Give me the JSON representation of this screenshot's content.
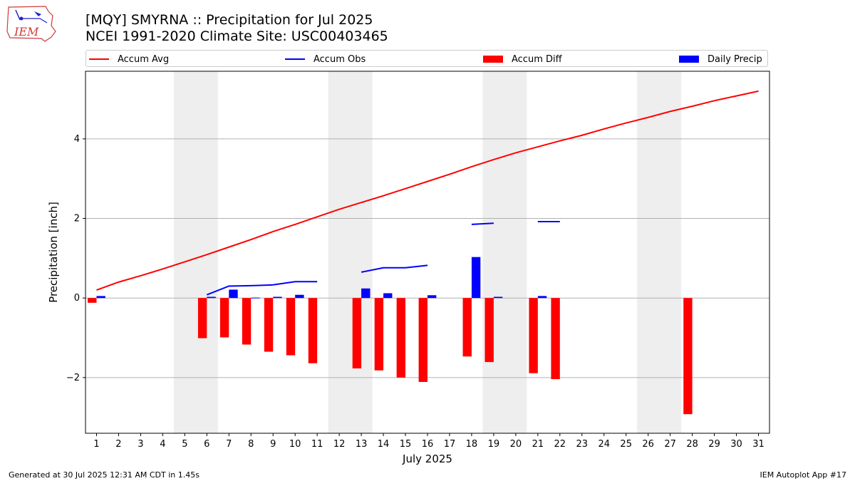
{
  "header": {
    "title_line1": "[MQY] SMYRNA :: Precipitation for Jul 2025",
    "title_line2": "NCEI 1991-2020 Climate Site: USC00403465",
    "logo_text": "IEM"
  },
  "footer": {
    "left": "Generated at 30 Jul 2025 12:31 AM CDT in 1.45s",
    "right": "IEM Autoplot App #17"
  },
  "legend": [
    {
      "label": "Accum Avg",
      "kind": "line",
      "color": "#ff0000"
    },
    {
      "label": "Accum Obs",
      "kind": "line",
      "color": "#0000ff"
    },
    {
      "label": "Accum Diff",
      "kind": "bar",
      "color": "#ff0000"
    },
    {
      "label": "Daily Precip",
      "kind": "bar",
      "color": "#0000ff"
    }
  ],
  "chart_data": {
    "type": "bar",
    "xlabel": "July 2025",
    "ylabel": "Precipitation [inch]",
    "xlim": [
      0.5,
      31.5
    ],
    "ylim": [
      -3.4,
      5.7
    ],
    "yticks": [
      -2,
      0,
      2,
      4
    ],
    "ytick_labels": [
      "−2",
      "0",
      "2",
      "4"
    ],
    "grid": "horizontal",
    "legend_position": "top",
    "days": [
      1,
      2,
      3,
      4,
      5,
      6,
      7,
      8,
      9,
      10,
      11,
      12,
      13,
      14,
      15,
      16,
      17,
      18,
      19,
      20,
      21,
      22,
      23,
      24,
      25,
      26,
      27,
      28,
      29,
      30,
      31
    ],
    "weekend_shading": [
      [
        4.5,
        6.5
      ],
      [
        11.5,
        13.5
      ],
      [
        18.5,
        20.5
      ],
      [
        25.5,
        27.5
      ]
    ],
    "series": [
      {
        "name": "Accum Avg",
        "kind": "line",
        "color": "#ff0000",
        "x": [
          1,
          2,
          3,
          4,
          5,
          6,
          7,
          8,
          9,
          10,
          11,
          12,
          13,
          14,
          15,
          16,
          17,
          18,
          19,
          20,
          21,
          22,
          23,
          24,
          25,
          26,
          27,
          28,
          29,
          30,
          31
        ],
        "values": [
          0.2,
          0.4,
          0.56,
          0.73,
          0.91,
          1.09,
          1.28,
          1.47,
          1.67,
          1.85,
          2.04,
          2.23,
          2.4,
          2.57,
          2.75,
          2.93,
          3.11,
          3.3,
          3.48,
          3.65,
          3.8,
          3.95,
          4.09,
          4.25,
          4.4,
          4.54,
          4.69,
          4.82,
          4.96,
          5.08,
          5.2
        ]
      },
      {
        "name": "Accum Obs",
        "kind": "line",
        "color": "#0000ff",
        "segments": [
          {
            "x": [
              6,
              7,
              8,
              9,
              10,
              11
            ],
            "values": [
              0.08,
              0.3,
              0.31,
              0.33,
              0.41,
              0.41
            ]
          },
          {
            "x": [
              13,
              14,
              15,
              16
            ],
            "values": [
              0.65,
              0.76,
              0.76,
              0.82
            ]
          },
          {
            "x": [
              18,
              19
            ],
            "values": [
              1.85,
              1.88
            ]
          },
          {
            "x": [
              21,
              22
            ],
            "values": [
              1.92,
              1.92
            ]
          }
        ]
      },
      {
        "name": "Accum Diff",
        "kind": "bar",
        "color": "#ff0000",
        "x": [
          1,
          6,
          7,
          8,
          9,
          10,
          11,
          13,
          14,
          15,
          16,
          18,
          19,
          21,
          22,
          28
        ],
        "values": [
          -0.12,
          -1.01,
          -0.99,
          -1.17,
          -1.35,
          -1.44,
          -1.64,
          -1.77,
          -1.82,
          -2.0,
          -2.11,
          -1.47,
          -1.61,
          -1.89,
          -2.04,
          -2.92
        ]
      },
      {
        "name": "Daily Precip",
        "kind": "bar",
        "color": "#0000ff",
        "x": [
          1,
          6,
          7,
          8,
          9,
          10,
          13,
          14,
          16,
          18,
          19,
          21
        ],
        "values": [
          0.05,
          0.03,
          0.21,
          0.01,
          0.03,
          0.08,
          0.24,
          0.12,
          0.07,
          1.03,
          0.03,
          0.05
        ]
      }
    ]
  }
}
